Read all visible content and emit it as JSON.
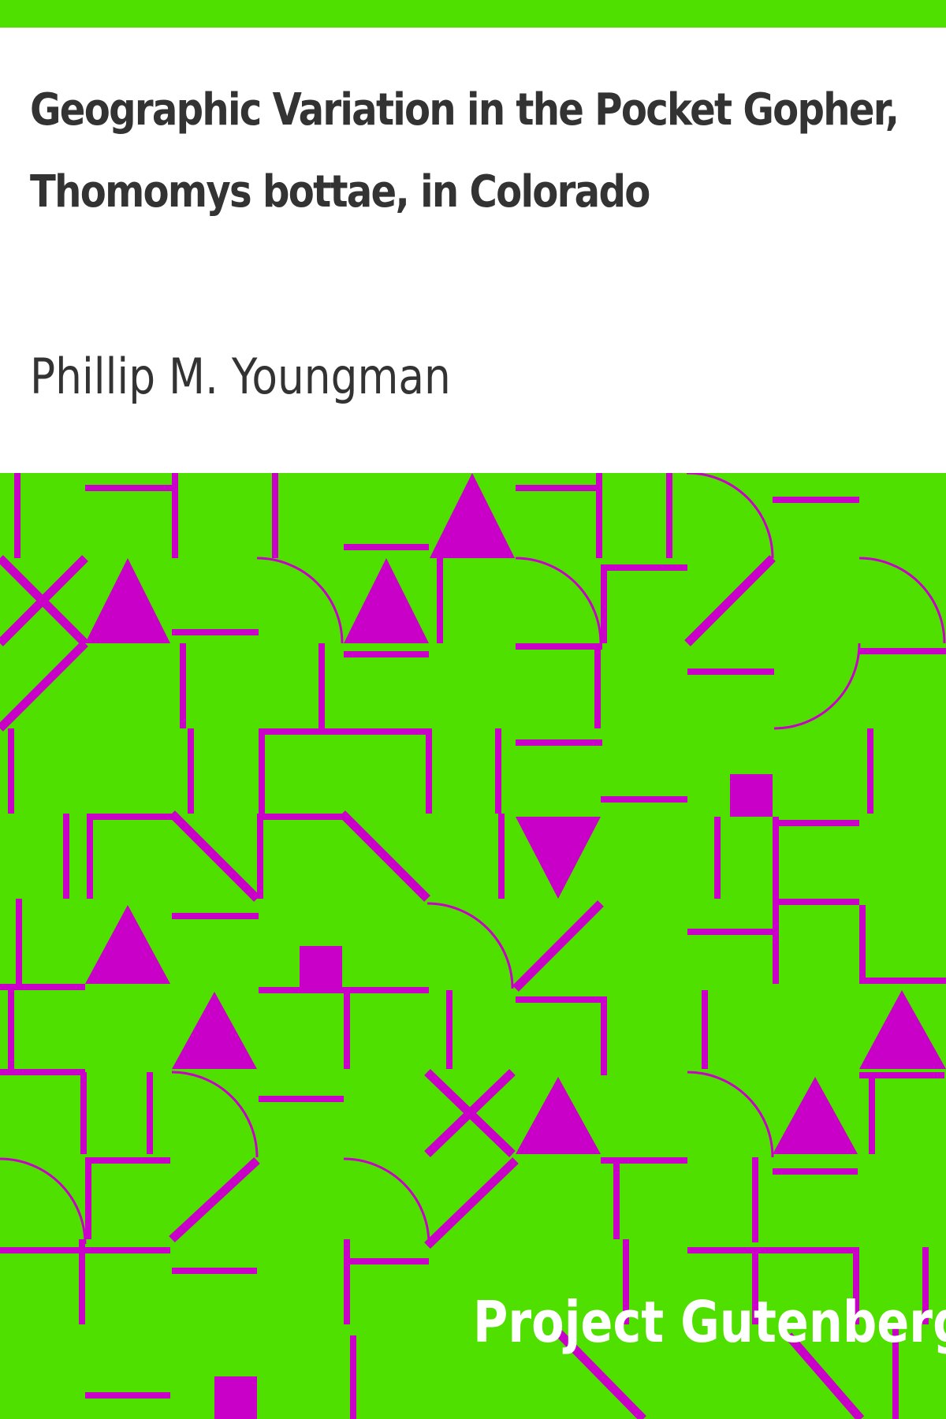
{
  "cover": {
    "title_line_1": "Geographic Variation in the Pocket Gopher,",
    "title_line_2": "Thomomys bottae, in Colorado",
    "author": "Phillip M. Youngman",
    "publisher": "Project Gutenberg"
  },
  "colors": {
    "background": "#50e000",
    "pattern": "#c800c8",
    "title_text": "#333333",
    "publisher_text": "#ffffff"
  }
}
